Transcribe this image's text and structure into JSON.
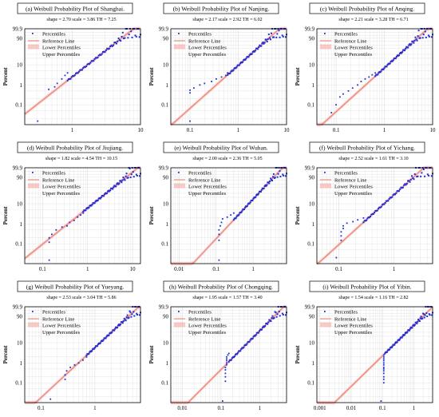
{
  "legend": {
    "percentiles": "Percentiles",
    "reference": "Reference Line",
    "lower": "Lower Percentiles",
    "upper": "Upper Percentiles"
  },
  "ylabel": "Percent",
  "colors": {
    "points": "#1f2fd6",
    "reference": "#e8735f",
    "band": "#f6a8a0",
    "grid": "#dcdcdc"
  },
  "chart_data": [
    {
      "id": "a",
      "type": "scatter",
      "scale": 3.86,
      "title": "(a) Weibull Probability Plot of Shanghai.",
      "subtitle": "shape = 2.70  scale = 3.86  TH = 7.25",
      "shape": 2.7,
      "threshold": 7.25,
      "xlim": [
        0.2,
        10
      ],
      "ylim": [
        0.01,
        99.9
      ],
      "xticks": [
        {
          "v": 1,
          "l": "1"
        },
        {
          "v": 10,
          "l": "10"
        }
      ],
      "yticks": [
        {
          "v": 0.1,
          "l": "0.1"
        },
        {
          "v": 1,
          "l": "1"
        },
        {
          "v": 10,
          "l": "10"
        },
        {
          "v": 90,
          "l": "90"
        },
        {
          "v": 99.9,
          "l": "99.9"
        }
      ],
      "points": [
        [
          0.31,
          0.015
        ],
        [
          0.45,
          0.6
        ],
        [
          0.55,
          0.8
        ],
        [
          0.6,
          1.2
        ],
        [
          0.7,
          2
        ],
        [
          0.78,
          3
        ],
        [
          0.85,
          4
        ]
      ]
    },
    {
      "id": "b",
      "type": "scatter",
      "scale": 2.92,
      "title": "(b) Weibull Probability Plot of Nanjing.",
      "subtitle": "shape = 2.17  scale = 2.92  TH = 6.02",
      "shape": 2.17,
      "threshold": 6.02,
      "xlim": [
        0.04,
        10
      ],
      "ylim": [
        0.01,
        99.9
      ],
      "xticks": [
        {
          "v": 0.1,
          "l": "0.1"
        },
        {
          "v": 1,
          "l": "1"
        },
        {
          "v": 10,
          "l": "10"
        }
      ],
      "yticks": [
        {
          "v": 0.1,
          "l": "0.1"
        },
        {
          "v": 1,
          "l": "1"
        },
        {
          "v": 10,
          "l": "10"
        },
        {
          "v": 90,
          "l": "90"
        },
        {
          "v": 99.9,
          "l": "99.9"
        }
      ],
      "points": [
        [
          0.1,
          0.015
        ],
        [
          0.1,
          0.4
        ],
        [
          0.1,
          0.55
        ],
        [
          0.12,
          0.7
        ],
        [
          0.16,
          1.0
        ],
        [
          0.2,
          1.2
        ],
        [
          0.28,
          1.5
        ],
        [
          0.35,
          2
        ],
        [
          0.45,
          2.5
        ],
        [
          0.55,
          3
        ],
        [
          0.6,
          4
        ]
      ]
    },
    {
      "id": "c",
      "type": "scatter",
      "scale": 3.28,
      "title": "(c) Weibull Probability Plot of Anqing.",
      "subtitle": "shape = 2.21  scale = 3.28  TH = 6.71",
      "shape": 2.21,
      "threshold": 6.71,
      "xlim": [
        0.04,
        10
      ],
      "ylim": [
        0.01,
        99.9
      ],
      "xticks": [
        {
          "v": 0.1,
          "l": "0.1"
        },
        {
          "v": 1,
          "l": "1"
        },
        {
          "v": 10,
          "l": "10"
        }
      ],
      "yticks": [
        {
          "v": 0.1,
          "l": "0.1"
        },
        {
          "v": 1,
          "l": "1"
        },
        {
          "v": 10,
          "l": "10"
        },
        {
          "v": 90,
          "l": "90"
        },
        {
          "v": 99.9,
          "l": "99.9"
        }
      ],
      "points": [
        [
          0.08,
          0.04
        ],
        [
          0.1,
          0.1
        ],
        [
          0.12,
          0.25
        ],
        [
          0.14,
          0.35
        ],
        [
          0.18,
          0.5
        ],
        [
          0.22,
          0.7
        ],
        [
          0.28,
          1.0
        ],
        [
          0.33,
          1.5
        ],
        [
          0.4,
          2
        ],
        [
          0.48,
          2.5
        ],
        [
          0.56,
          3.2
        ],
        [
          0.65,
          4
        ]
      ]
    },
    {
      "id": "d",
      "type": "scatter",
      "scale": 4.54,
      "title": "(d) Weibull Probability Plot of Jiujiang.",
      "subtitle": "shape = 1.82  scale = 4.54  TH = 10.15",
      "shape": 1.82,
      "threshold": 10.15,
      "xlim": [
        0.04,
        15
      ],
      "ylim": [
        0.01,
        99.9
      ],
      "xticks": [
        {
          "v": 0.1,
          "l": "0.1"
        },
        {
          "v": 1,
          "l": "1"
        },
        {
          "v": 10,
          "l": "10"
        }
      ],
      "yticks": [
        {
          "v": 0.1,
          "l": "0.1"
        },
        {
          "v": 1,
          "l": "1"
        },
        {
          "v": 10,
          "l": "10"
        },
        {
          "v": 90,
          "l": "90"
        },
        {
          "v": 99.9,
          "l": "99.9"
        }
      ],
      "points": [
        [
          0.14,
          0.015
        ],
        [
          0.14,
          0.12
        ],
        [
          0.14,
          0.2
        ],
        [
          0.16,
          0.3
        ],
        [
          0.2,
          0.5
        ],
        [
          0.27,
          0.7
        ],
        [
          0.35,
          0.8
        ],
        [
          0.4,
          1.2
        ],
        [
          0.5,
          1.5
        ],
        [
          0.6,
          2.2
        ],
        [
          0.7,
          2.8
        ],
        [
          0.8,
          3.5
        ]
      ]
    },
    {
      "id": "e",
      "type": "scatter",
      "scale": 2.36,
      "title": "(e) Weibull Probability Plot of Wuhan.",
      "subtitle": "shape = 2.00  scale = 2.36  TH = 5.05",
      "shape": 2.0,
      "threshold": 5.05,
      "xlim": [
        0.006,
        8
      ],
      "ylim": [
        0.01,
        99.9
      ],
      "xticks": [
        {
          "v": 0.01,
          "l": "0.01"
        },
        {
          "v": 0.1,
          "l": "0.1"
        },
        {
          "v": 1,
          "l": "1"
        }
      ],
      "yticks": [
        {
          "v": 0.1,
          "l": "0.1"
        },
        {
          "v": 1,
          "l": "1"
        },
        {
          "v": 10,
          "l": "10"
        },
        {
          "v": 90,
          "l": "90"
        },
        {
          "v": 99.9,
          "l": "99.9"
        }
      ],
      "points": [
        [
          0.12,
          0.015
        ],
        [
          0.12,
          0.15
        ],
        [
          0.12,
          0.3
        ],
        [
          0.12,
          0.5
        ],
        [
          0.13,
          0.8
        ],
        [
          0.14,
          1.2
        ],
        [
          0.15,
          1.8
        ],
        [
          0.2,
          2.2
        ],
        [
          0.25,
          2.8
        ],
        [
          0.3,
          3.5
        ]
      ]
    },
    {
      "id": "f",
      "type": "scatter",
      "scale": 1.61,
      "title": "(f) Weibull Probability Plot of Yichang.",
      "subtitle": "shape = 2.52  scale = 1.61  TH = 3.10",
      "shape": 2.52,
      "threshold": 3.1,
      "xlim": [
        0.04,
        5
      ],
      "ylim": [
        0.01,
        99.9
      ],
      "xticks": [
        {
          "v": 0.1,
          "l": "0.1"
        },
        {
          "v": 1,
          "l": "1"
        }
      ],
      "yticks": [
        {
          "v": 0.1,
          "l": "0.1"
        },
        {
          "v": 1,
          "l": "1"
        },
        {
          "v": 10,
          "l": "10"
        },
        {
          "v": 90,
          "l": "90"
        },
        {
          "v": 99.9,
          "l": "99.9"
        }
      ],
      "points": [
        [
          0.09,
          0.02
        ],
        [
          0.11,
          0.15
        ],
        [
          0.11,
          0.25
        ],
        [
          0.11,
          0.4
        ],
        [
          0.12,
          0.6
        ],
        [
          0.12,
          0.8
        ],
        [
          0.14,
          1.1
        ],
        [
          0.18,
          1.3
        ],
        [
          0.22,
          1.6
        ],
        [
          0.28,
          2
        ]
      ]
    },
    {
      "id": "g",
      "type": "scatter",
      "scale": 3.04,
      "title": "(g) Weibull Probability Plot of Yueyang.",
      "subtitle": "shape = 2.53  scale = 3.04  TH = 5.86",
      "shape": 2.53,
      "threshold": 5.86,
      "xlim": [
        0.05,
        7
      ],
      "ylim": [
        0.01,
        99.9
      ],
      "xticks": [
        {
          "v": 0.1,
          "l": "0.1"
        },
        {
          "v": 1,
          "l": "1"
        }
      ],
      "yticks": [
        {
          "v": 0.1,
          "l": "0.1"
        },
        {
          "v": 1,
          "l": "1"
        },
        {
          "v": 10,
          "l": "10"
        },
        {
          "v": 90,
          "l": "90"
        },
        {
          "v": 99.9,
          "l": "99.9"
        }
      ],
      "points": [
        [
          0.15,
          0.015
        ],
        [
          0.28,
          0.15
        ],
        [
          0.28,
          0.25
        ],
        [
          0.3,
          0.4
        ],
        [
          0.35,
          0.6
        ],
        [
          0.42,
          0.8
        ],
        [
          0.5,
          1.0
        ],
        [
          0.6,
          1.4
        ],
        [
          0.7,
          2
        ]
      ]
    },
    {
      "id": "h",
      "type": "scatter",
      "scale": 1.57,
      "title": "(h) Weibull Probability Plot of Chongqing.",
      "subtitle": "shape = 1.95  scale = 1.57  TH = 3.40",
      "shape": 1.95,
      "threshold": 3.4,
      "xlim": [
        0.005,
        5
      ],
      "ylim": [
        0.01,
        99.9
      ],
      "xticks": [
        {
          "v": 0.01,
          "l": "0.01"
        },
        {
          "v": 0.1,
          "l": "0.1"
        },
        {
          "v": 1,
          "l": "1"
        }
      ],
      "yticks": [
        {
          "v": 0.1,
          "l": "0.1"
        },
        {
          "v": 1,
          "l": "1"
        },
        {
          "v": 10,
          "l": "10"
        },
        {
          "v": 90,
          "l": "90"
        },
        {
          "v": 99.9,
          "l": "99.9"
        }
      ],
      "points": [
        [
          0.11,
          0.012
        ],
        [
          0.13,
          0.12
        ],
        [
          0.13,
          0.2
        ],
        [
          0.13,
          0.3
        ],
        [
          0.13,
          0.45
        ],
        [
          0.13,
          0.6
        ],
        [
          0.14,
          0.8
        ],
        [
          0.14,
          1.0
        ],
        [
          0.14,
          1.3
        ],
        [
          0.14,
          1.6
        ],
        [
          0.14,
          2.0
        ],
        [
          0.15,
          2.5
        ],
        [
          0.16,
          3.0
        ]
      ]
    },
    {
      "id": "i",
      "type": "scatter",
      "scale": 1.16,
      "title": "(i) Weibull Probability Plot of Yibin.",
      "subtitle": "shape = 1.54  scale = 1.16  TH = 2.82",
      "shape": 1.54,
      "threshold": 2.82,
      "xlim": [
        0.0008,
        4
      ],
      "ylim": [
        0.01,
        99.9
      ],
      "xticks": [
        {
          "v": 0.001,
          "l": "0.001"
        },
        {
          "v": 0.01,
          "l": "0.01"
        },
        {
          "v": 0.1,
          "l": "0.1"
        },
        {
          "v": 1,
          "l": "1"
        }
      ],
      "yticks": [
        {
          "v": 0.1,
          "l": "0.1"
        },
        {
          "v": 1,
          "l": "1"
        },
        {
          "v": 10,
          "l": "10"
        },
        {
          "v": 90,
          "l": "90"
        },
        {
          "v": 99.9,
          "l": "99.9"
        }
      ],
      "points": [
        [
          0.09,
          0.012
        ],
        [
          0.11,
          0.1
        ],
        [
          0.11,
          0.15
        ],
        [
          0.11,
          0.2
        ],
        [
          0.11,
          0.3
        ],
        [
          0.11,
          0.4
        ],
        [
          0.11,
          0.5
        ],
        [
          0.11,
          0.6
        ],
        [
          0.11,
          0.8
        ],
        [
          0.11,
          1.0
        ],
        [
          0.11,
          1.3
        ],
        [
          0.11,
          1.6
        ],
        [
          0.11,
          2.0
        ],
        [
          0.11,
          2.5
        ],
        [
          0.12,
          3.0
        ]
      ]
    }
  ]
}
